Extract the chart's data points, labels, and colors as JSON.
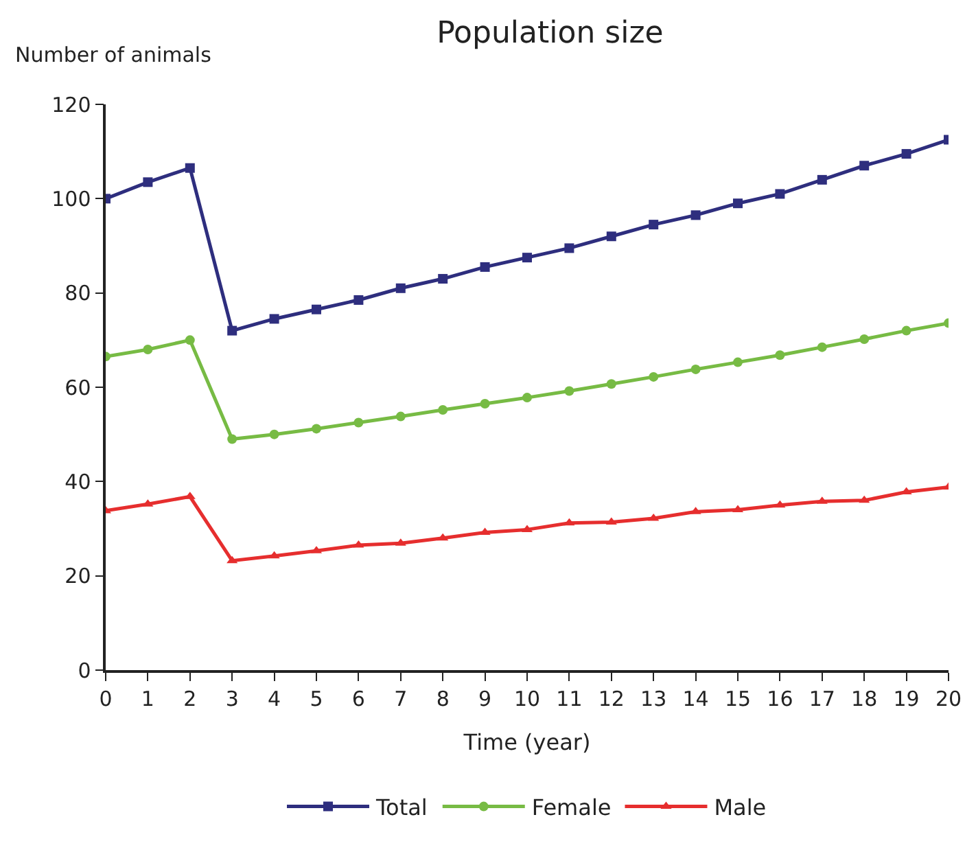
{
  "chart_data": {
    "type": "line",
    "title": "Population size",
    "xlabel": "Time (year)",
    "ylabel": "Number of animals",
    "x": [
      0,
      1,
      2,
      3,
      4,
      5,
      6,
      7,
      8,
      9,
      10,
      11,
      12,
      13,
      14,
      15,
      16,
      17,
      18,
      19,
      20
    ],
    "series": [
      {
        "name": "Total",
        "color": "#2e2e7e",
        "marker": "square",
        "values": [
          100,
          103.5,
          106.5,
          72,
          74.5,
          76.5,
          78.5,
          81,
          83,
          85.5,
          87.5,
          89.5,
          92,
          94.5,
          96.5,
          99,
          101,
          104,
          107,
          109.5,
          112.5
        ]
      },
      {
        "name": "Female",
        "color": "#77bb44",
        "marker": "circle",
        "values": [
          66.5,
          68,
          70,
          49,
          50,
          51.2,
          52.5,
          53.8,
          55.2,
          56.5,
          57.8,
          59.2,
          60.7,
          62.2,
          63.8,
          65.3,
          66.8,
          68.5,
          70.2,
          72,
          73.6
        ]
      },
      {
        "name": "Male",
        "color": "#e62e2e",
        "marker": "triangle",
        "values": [
          33.8,
          35.2,
          36.8,
          23.2,
          24.2,
          25.3,
          26.5,
          26.9,
          28,
          29.2,
          29.8,
          31.2,
          31.4,
          32.2,
          33.6,
          34,
          35,
          35.8,
          36,
          37.8,
          38.8
        ]
      }
    ],
    "xlim": [
      0,
      20
    ],
    "xticks": [
      0,
      1,
      2,
      3,
      4,
      5,
      6,
      7,
      8,
      9,
      10,
      11,
      12,
      13,
      14,
      15,
      16,
      17,
      18,
      19,
      20
    ],
    "ylim": [
      0,
      120
    ],
    "yticks": [
      0,
      20,
      40,
      60,
      80,
      100,
      120
    ],
    "grid": false,
    "legend": "bottom",
    "line_style": "solid"
  }
}
